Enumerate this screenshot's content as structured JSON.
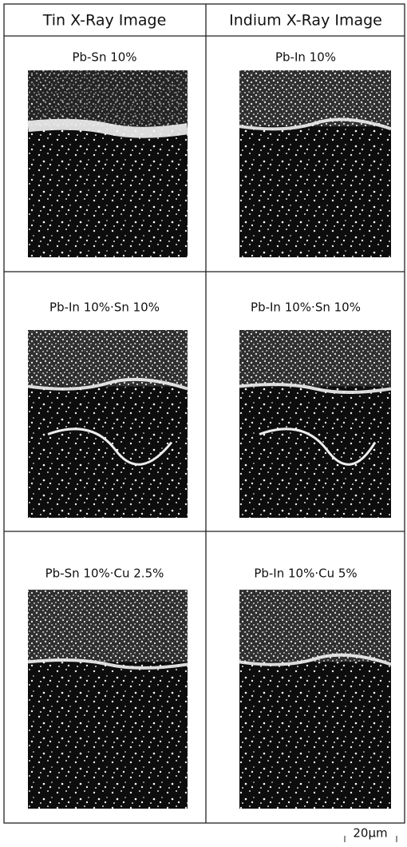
{
  "table": {
    "headers": [
      "Tin X-Ray Image",
      "Indium X-Ray Image"
    ],
    "rows": [
      [
        "Pb-Sn 10%",
        "Pb-In 10%"
      ],
      [
        "Pb-In 10%·Sn 10%",
        "Pb-In 10%·Sn 10%"
      ],
      [
        "Pb-Sn 10%·Cu 2.5%",
        "Pb-In 10%·Cu 5%"
      ]
    ]
  },
  "scale_bar": "20μm"
}
